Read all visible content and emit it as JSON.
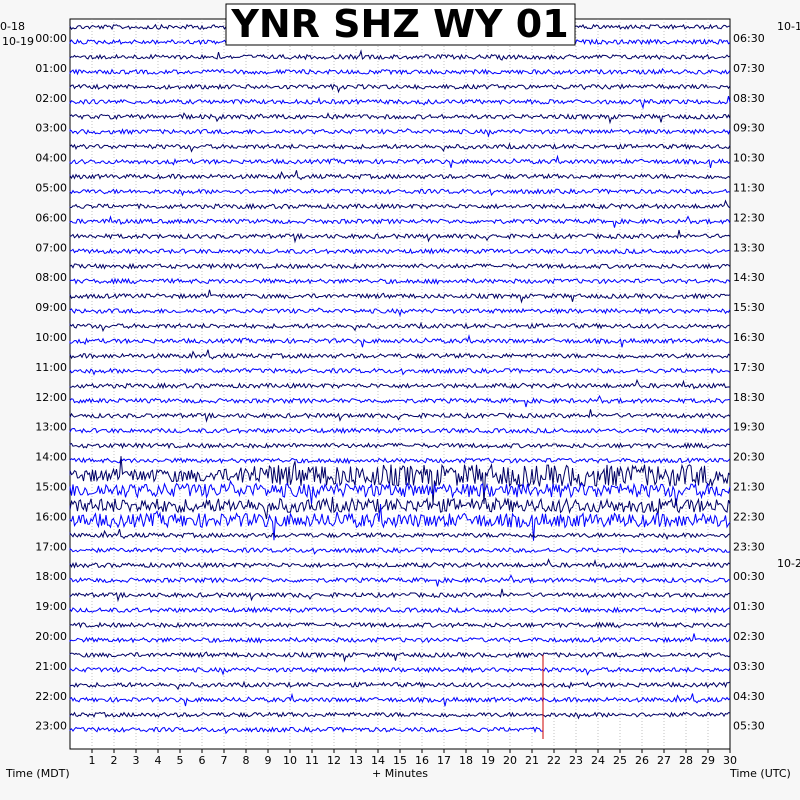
{
  "chart_data": {
    "type": "line",
    "title": "YNR SHZ WY 01",
    "xlabel": "+ Minutes",
    "ylabel_left": "Time (MDT)",
    "ylabel_right": "Time (UTC)",
    "xlim": [
      0,
      30
    ],
    "x_ticks": [
      "1",
      "2",
      "3",
      "4",
      "5",
      "6",
      "7",
      "8",
      "9",
      "10",
      "11",
      "12",
      "13",
      "14",
      "15",
      "16",
      "17",
      "18",
      "19",
      "20",
      "21",
      "22",
      "23",
      "24",
      "25",
      "26",
      "27",
      "28",
      "29",
      "30"
    ],
    "date_left_top": "0-18",
    "date_left_start": "10-19",
    "date_right_top": "10-1",
    "date_right_mid": "10-2",
    "rows_per_hour": 2,
    "hours_left": [
      "00:00",
      "01:00",
      "02:00",
      "03:00",
      "04:00",
      "05:00",
      "06:00",
      "07:00",
      "08:00",
      "09:00",
      "10:00",
      "11:00",
      "12:00",
      "13:00",
      "14:00",
      "15:00",
      "16:00",
      "17:00",
      "18:00",
      "19:00",
      "20:00",
      "21:00",
      "22:00",
      "23:00"
    ],
    "hours_right": [
      "06:30",
      "07:30",
      "08:30",
      "09:30",
      "10:30",
      "11:30",
      "12:30",
      "13:30",
      "14:30",
      "15:30",
      "16:30",
      "17:30",
      "18:30",
      "19:30",
      "20:30",
      "21:30",
      "22:30",
      "23:30",
      "00:30",
      "01:30",
      "02:30",
      "03:30",
      "04:30",
      "05:30"
    ],
    "trace_colors": [
      "#000066",
      "#0000ff"
    ],
    "event_row": 30,
    "event_rows": [
      31,
      32,
      33
    ],
    "last_row_end_minute": 21.5,
    "marker_minute": 21.5,
    "marker_color": "#cc0000"
  }
}
